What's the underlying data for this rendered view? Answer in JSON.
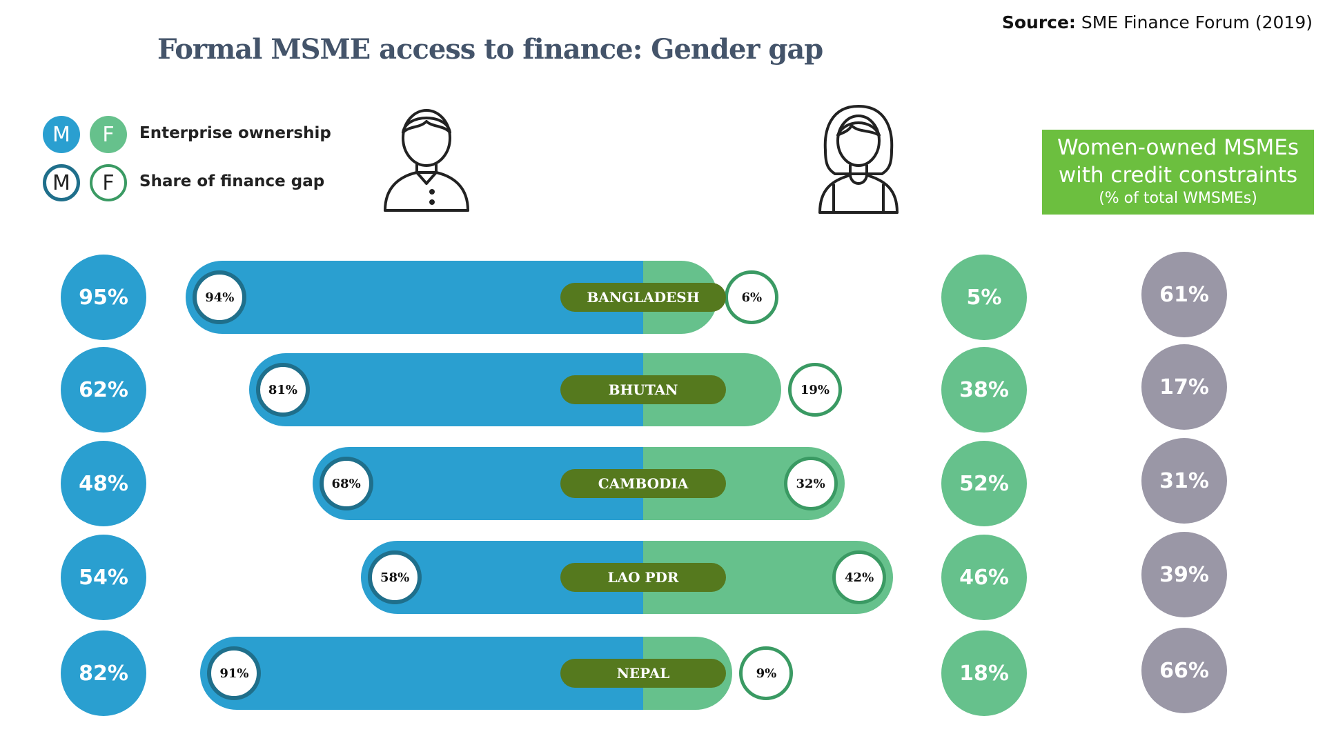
{
  "source": {
    "bold": "Source:",
    "text": " SME Finance Forum (2019)"
  },
  "title": "Formal MSME access to finance: Gender gap",
  "legend": {
    "m": "M",
    "f": "F",
    "ownership_label": "Enterprise ownership",
    "finance_label": "Share of finance gap"
  },
  "women_box": {
    "line1": "Women-owned MSMEs",
    "line2": "with credit constraints",
    "line3": "(% of total WMSMEs)"
  },
  "colors": {
    "male": "#2a9fd0",
    "female": "#66c18c",
    "country_pill": "#55791e",
    "constraints": "#9a97a6",
    "box": "#6cbf3f",
    "title": "#44546a"
  },
  "chart_data": {
    "type": "bar",
    "title": "Formal MSME access to finance: Gender gap",
    "categories": [
      "BANGLADESH",
      "BHUTAN",
      "CAMBODIA",
      "LAO PDR",
      "NEPAL"
    ],
    "series": [
      {
        "name": "Enterprise ownership (M)",
        "values": [
          "95%",
          "62%",
          "48%",
          "54%",
          "82%"
        ]
      },
      {
        "name": "Share of finance gap (M)",
        "values": [
          94,
          81,
          68,
          58,
          91
        ],
        "labels": [
          "94%",
          "81%",
          "68%",
          "58%",
          "91%"
        ]
      },
      {
        "name": "Share of finance gap (F)",
        "values": [
          6,
          19,
          32,
          42,
          9
        ],
        "labels": [
          "6%",
          "19%",
          "32%",
          "42%",
          "9%"
        ]
      },
      {
        "name": "Enterprise ownership (F)",
        "values": [
          "5%",
          "38%",
          "52%",
          "46%",
          "18%"
        ]
      },
      {
        "name": "Women-owned MSMEs with credit constraints",
        "values": [
          "61%",
          "17%",
          "31%",
          "39%",
          "66%"
        ]
      }
    ]
  }
}
